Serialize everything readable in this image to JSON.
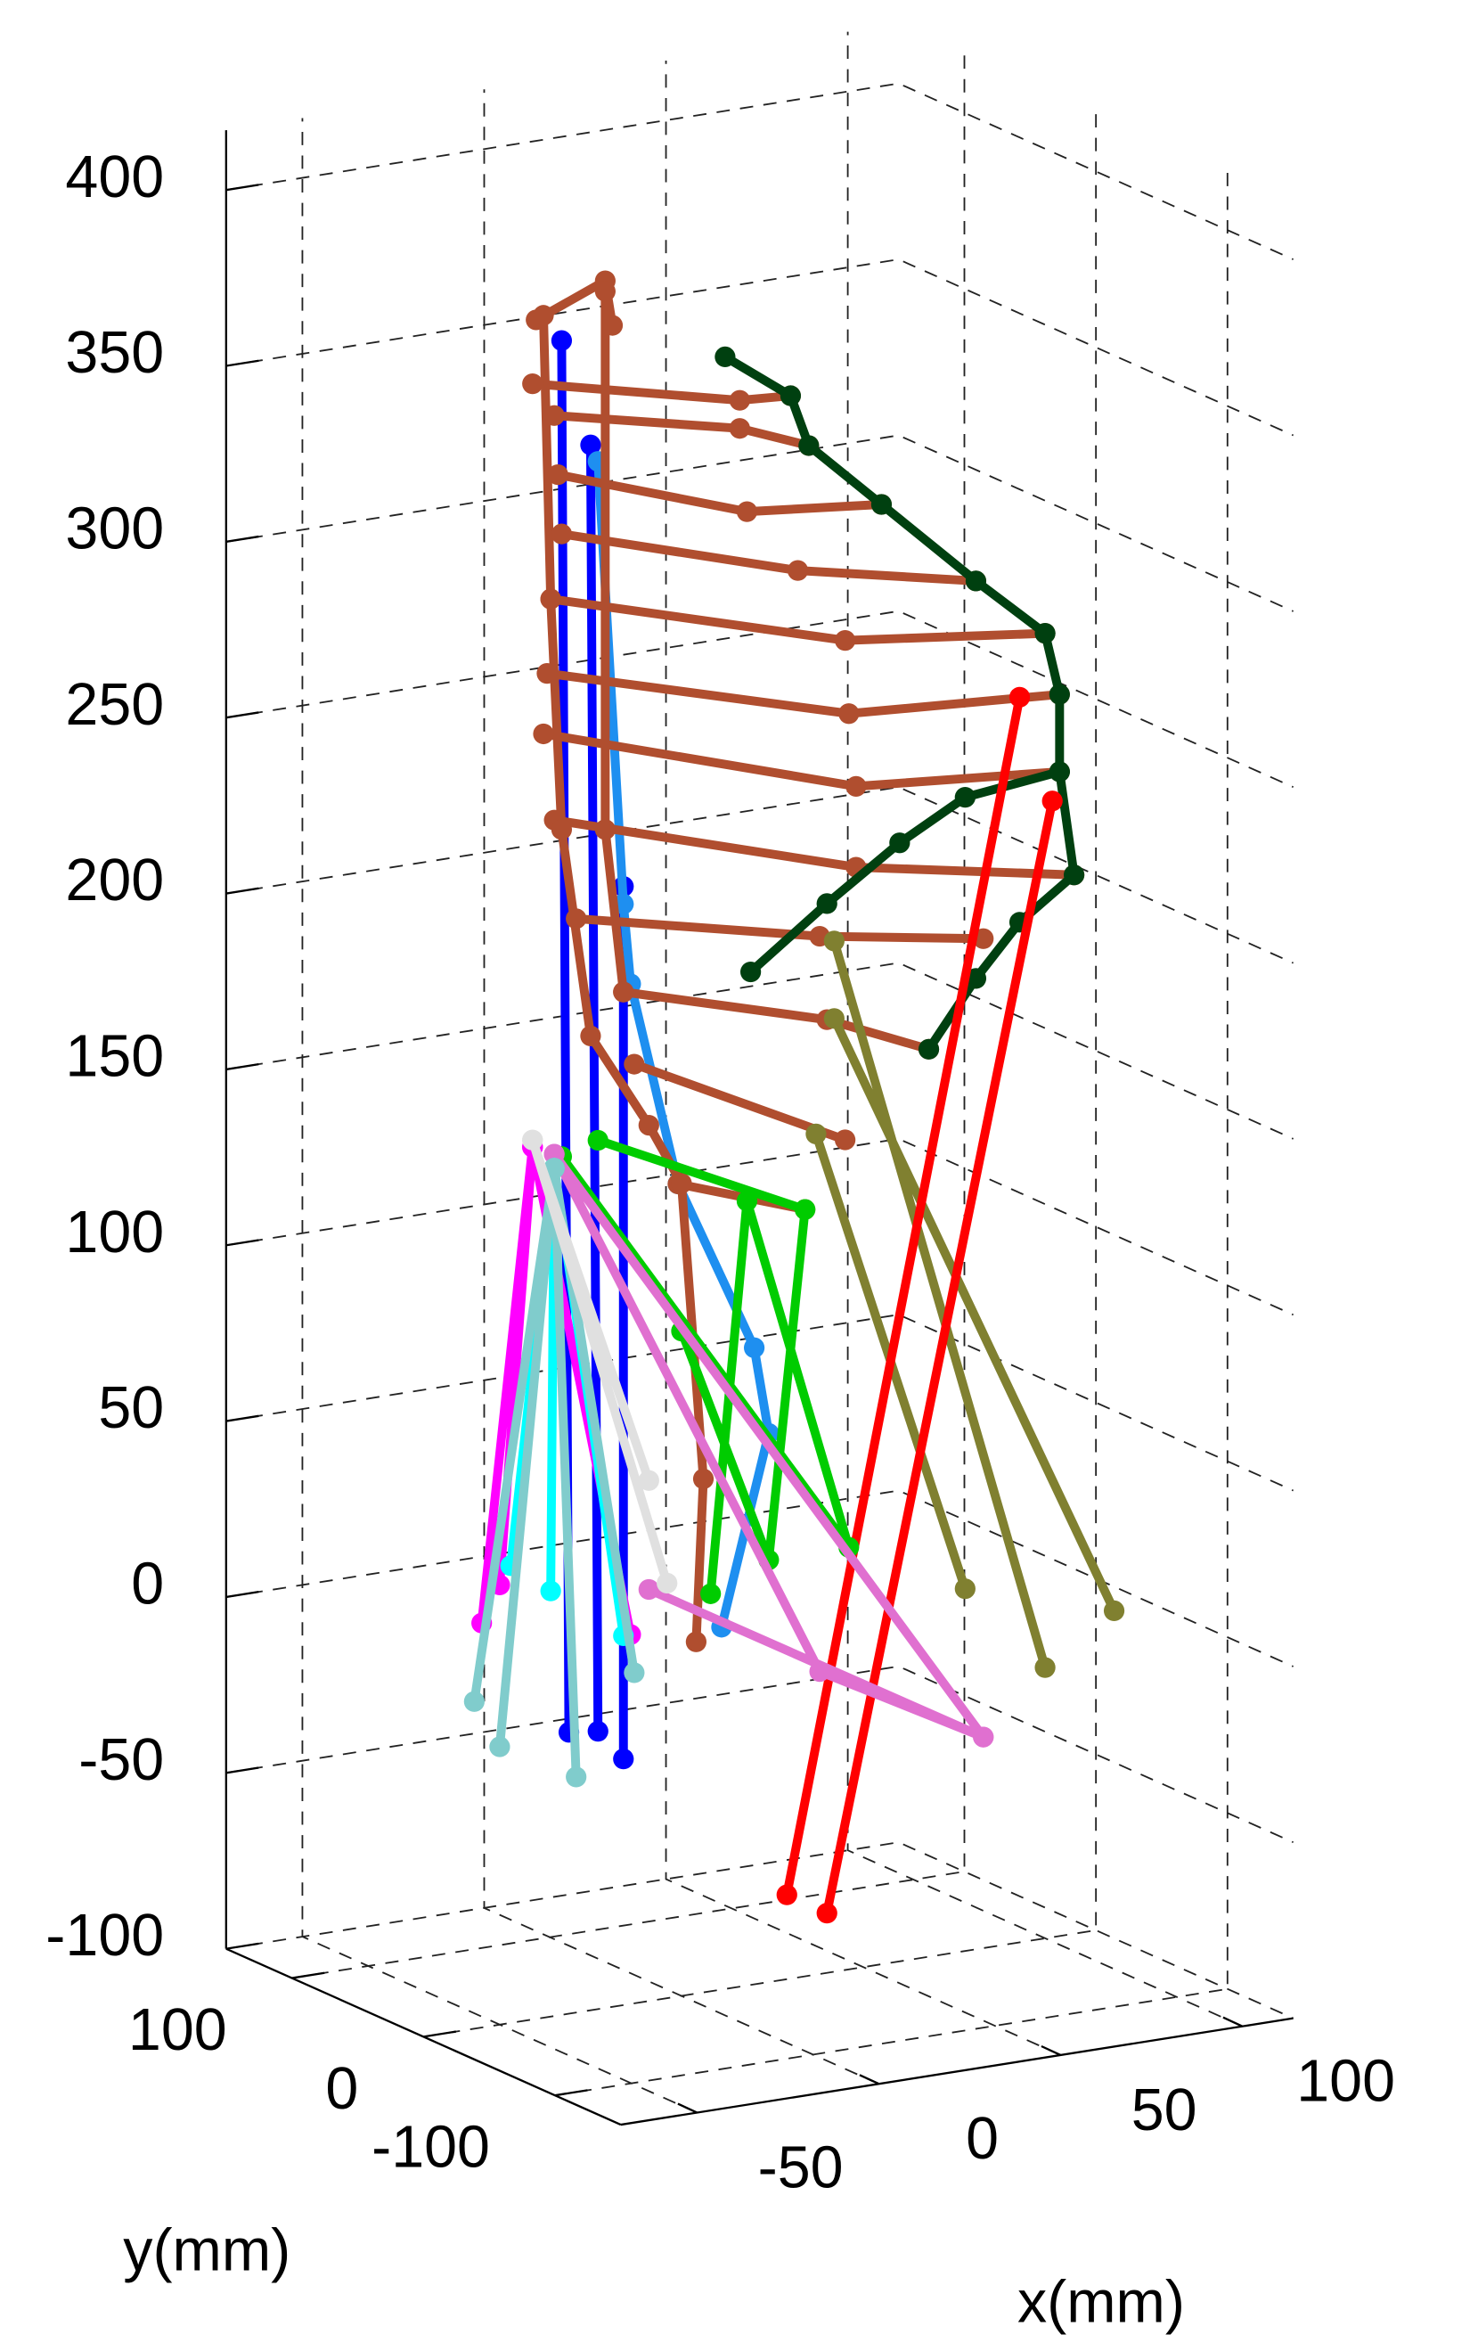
{
  "chart_data": {
    "type": "line3d",
    "xlabel": "x(mm)",
    "ylabel": "y(mm)",
    "xlim": [
      -71,
      114
    ],
    "ylim": [
      -150,
      150
    ],
    "zlim": [
      -100,
      417
    ],
    "xticks": [
      -50,
      0,
      50,
      100
    ],
    "yticks": [
      -100,
      0,
      100
    ],
    "zticks": [
      -100,
      -50,
      0,
      50,
      100,
      150,
      200,
      250,
      300,
      350,
      400
    ],
    "grid": true,
    "series": [
      {
        "color": "#0000ff",
        "x": [
          -33,
          -31,
          null,
          -25,
          -23,
          null,
          -16,
          -16
        ],
        "y": [
          0,
          0,
          null,
          0,
          0,
          null,
          0,
          0
        ],
        "z": [
          376,
          -20,
          null,
          345,
          -21,
          null,
          218,
          -30
        ]
      },
      {
        "color": "#1e8ff0",
        "x": [
          -23,
          -16,
          -14,
          -1,
          20,
          24,
          11
        ],
        "y": [
          0,
          0,
          0,
          0,
          0,
          0,
          0
        ],
        "z": [
          340,
          213,
          190,
          131,
          81,
          56,
          3
        ]
      },
      {
        "color": "#b04e2f",
        "x": [
          -40,
          -21,
          -19,
          null,
          -41,
          16,
          30,
          null,
          -35,
          16,
          35,
          null,
          -34,
          18,
          55,
          null,
          -33,
          32,
          81,
          null,
          -36,
          45,
          100,
          null,
          -37,
          46,
          104,
          null,
          -38,
          48,
          104,
          null,
          -35,
          48,
          108,
          null,
          -29,
          38,
          83,
          null,
          -16,
          40,
          68,
          null,
          -13,
          45,
          null,
          -1,
          34,
          null,
          -38,
          -36,
          -33,
          -25,
          -9,
          0,
          6,
          4,
          null,
          -21,
          -21,
          -16
        ],
        "y": [
          0,
          0,
          0,
          null,
          0,
          0,
          0,
          null,
          0,
          0,
          0,
          null,
          0,
          0,
          0,
          null,
          0,
          0,
          0,
          null,
          0,
          0,
          0,
          null,
          0,
          0,
          0,
          null,
          0,
          0,
          0,
          null,
          0,
          0,
          0,
          null,
          0,
          0,
          0,
          null,
          0,
          0,
          0,
          null,
          0,
          0,
          null,
          0,
          0,
          null,
          0,
          0,
          0,
          0,
          0,
          0,
          0,
          0,
          null,
          0,
          0,
          0
        ],
        "z": [
          383,
          391,
          378,
          null,
          365,
          351,
          350,
          null,
          355,
          343,
          335,
          null,
          338,
          319,
          315,
          null,
          321,
          300,
          289,
          null,
          303,
          278,
          271,
          null,
          282,
          257,
          253,
          null,
          265,
          236,
          231,
          null,
          240,
          213,
          201,
          null,
          211,
          195,
          187,
          null,
          188,
          171,
          158,
          null,
          167,
          136,
          null,
          131,
          118,
          null,
          384,
          303,
          237,
          177,
          149,
          131,
          46,
          0,
          null,
          388,
          235,
          188
        ]
      },
      {
        "color": "#004010",
        "x": [
          12,
          30,
          35,
          55,
          81,
          100,
          104,
          104,
          108,
          93,
          81,
          68,
          null,
          19,
          40,
          60,
          78,
          104
        ],
        "y": [
          0,
          0,
          0,
          0,
          0,
          0,
          0,
          0,
          0,
          0,
          0,
          0,
          null,
          0,
          0,
          0,
          0,
          0
        ],
        "z": [
          364,
          350,
          335,
          315,
          289,
          271,
          253,
          231,
          201,
          190,
          176,
          158,
          null,
          188,
          204,
          218,
          228,
          231
        ]
      },
      {
        "color": "#808030",
        "x": [
          42,
          100,
          null,
          42,
          119,
          null,
          37,
          78
        ],
        "y": [
          0,
          0,
          null,
          0,
          0,
          null,
          0,
          0
        ],
        "z": [
          193,
          -23,
          null,
          171,
          -10,
          null,
          139,
          3
        ]
      },
      {
        "color": "#ff0000",
        "x": [
          29,
          93,
          null,
          40,
          102
        ],
        "y": [
          0,
          0,
          null,
          0,
          0
        ],
        "z": [
          -76,
          254,
          null,
          -83,
          223
        ]
      },
      {
        "color": "#00cc00",
        "x": [
          -33,
          46,
          18,
          8,
          null,
          -23,
          34,
          24,
          0
        ],
        "y": [
          0,
          0,
          0,
          0,
          null,
          0,
          0,
          0,
          0
        ],
        "z": [
          144,
          20,
          123,
          13,
          null,
          147,
          118,
          20,
          89
        ]
      },
      {
        "color": "#e070d0",
        "x": [
          -35,
          83,
          38,
          -35,
          null,
          -9,
          83
        ],
        "y": [
          0,
          0,
          0,
          0,
          null,
          0,
          0
        ],
        "z": [
          145,
          -40,
          -14,
          145,
          null,
          17,
          -40
        ]
      },
      {
        "color": "#ff00ff",
        "x": [
          -41,
          -55,
          null,
          -41,
          -14,
          null,
          -41,
          -50
        ],
        "y": [
          0,
          0,
          null,
          0,
          0,
          null,
          0,
          0
        ],
        "z": [
          148,
          15,
          null,
          148,
          5,
          null,
          148,
          25
        ]
      },
      {
        "color": "#00ffff",
        "x": [
          -35,
          -47,
          null,
          -35,
          -36,
          null,
          -35,
          -16
        ],
        "y": [
          0,
          0,
          null,
          0,
          0,
          null,
          0,
          0
        ],
        "z": [
          141,
          30,
          null,
          141,
          21,
          null,
          141,
          5
        ]
      },
      {
        "color": "#80cccc",
        "x": [
          -35,
          -57,
          null,
          -35,
          -50,
          null,
          -35,
          -29,
          null,
          -35,
          -13
        ],
        "y": [
          0,
          0,
          null,
          0,
          0,
          null,
          0,
          0,
          null,
          0,
          0
        ],
        "z": [
          141,
          -7,
          null,
          141,
          -21,
          null,
          141,
          -33,
          null,
          141,
          -6
        ]
      },
      {
        "color": "#e0e0e0",
        "x": [
          -41,
          -4,
          null,
          -41,
          -9
        ],
        "y": [
          0,
          0,
          null,
          0,
          0
        ],
        "z": [
          150,
          18,
          null,
          150,
          48
        ]
      }
    ]
  }
}
